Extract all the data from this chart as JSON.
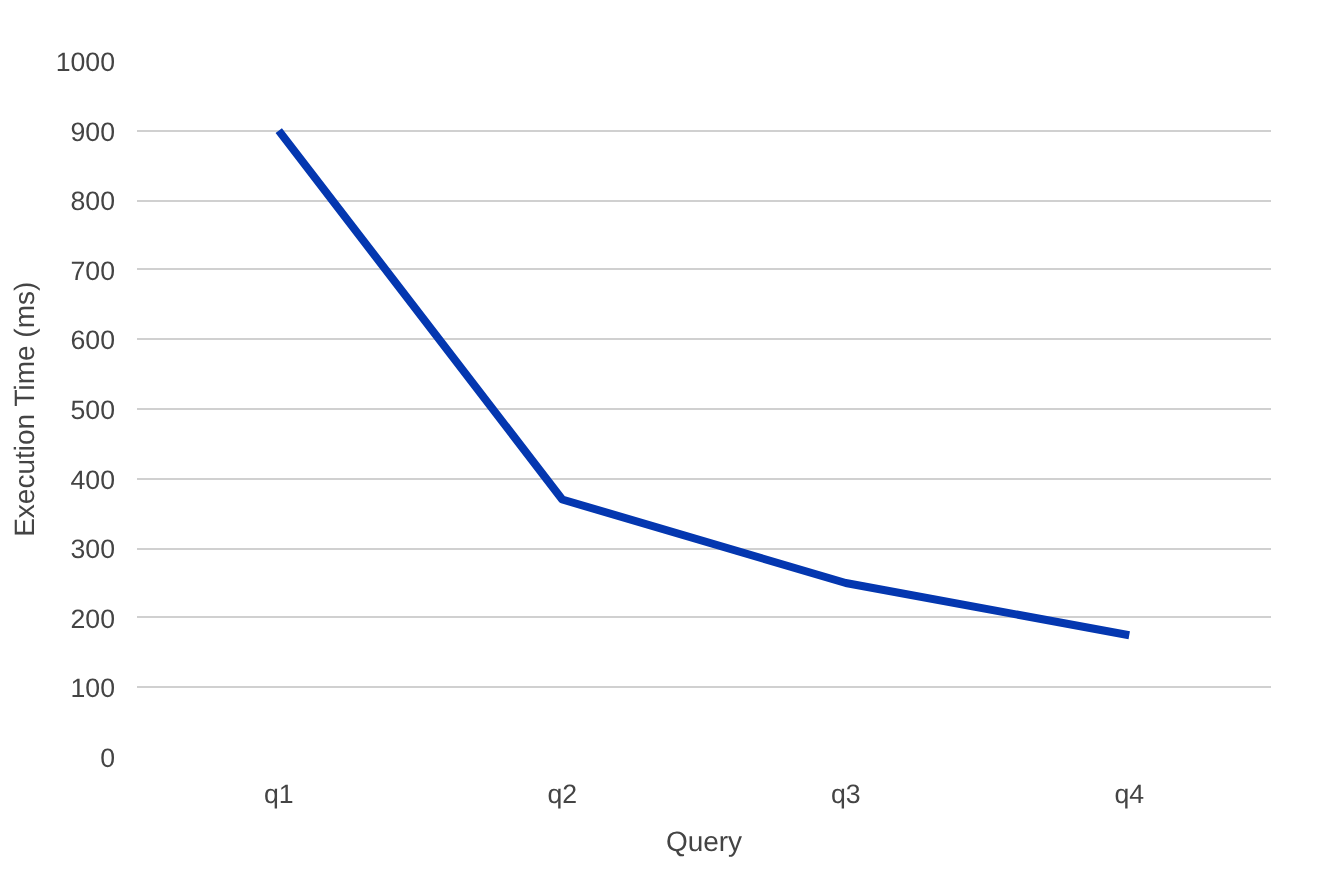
{
  "chart_data": {
    "type": "line",
    "xlabel": "Query",
    "ylabel": "Execution Time (ms)",
    "categories": [
      "q1",
      "q2",
      "q3",
      "q4"
    ],
    "series": [
      {
        "color": "#0437b0",
        "values": [
          900,
          370,
          250,
          175
        ]
      }
    ],
    "ylim": [
      0,
      1000
    ],
    "yticks": [
      0,
      100,
      200,
      300,
      400,
      500,
      600,
      700,
      800,
      900,
      1000
    ],
    "grid": "y",
    "marker": "none",
    "line_style": "solid"
  }
}
